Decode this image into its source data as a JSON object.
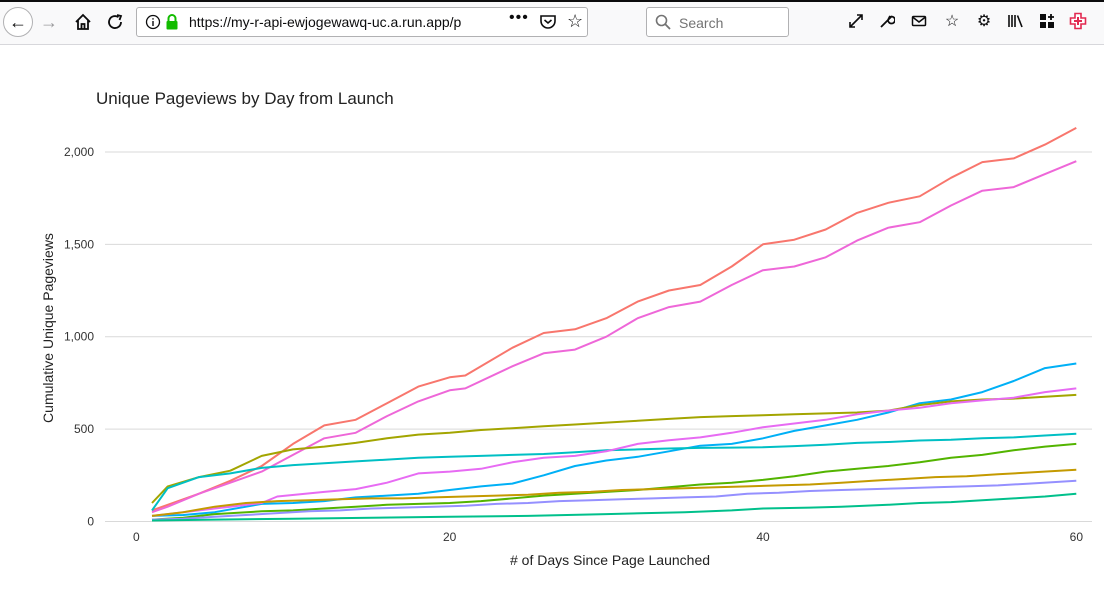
{
  "browser": {
    "url": "https://my-r-api-ewjogewawq-uc.a.run.app/p",
    "url_more": "•••",
    "search_placeholder": "Search"
  },
  "chart_data": {
    "type": "line",
    "title": "Unique Pageviews by Day from Launch",
    "xlabel": "# of Days Since Page Launched",
    "ylabel": "Cumulative Unique Pageviews",
    "xlim": [
      -2,
      61
    ],
    "ylim": [
      -30,
      2200
    ],
    "x_ticks": [
      0,
      20,
      40,
      60
    ],
    "x_tick_labels": [
      "0",
      "20",
      "40",
      "60"
    ],
    "y_ticks": [
      0,
      500,
      1000,
      1500,
      2000
    ],
    "y_tick_labels": [
      "0",
      "500",
      "1,000",
      "1,500",
      "2,000"
    ],
    "grid": "horizontal",
    "legend": "none",
    "series": [
      {
        "color": "#F8766D",
        "points": [
          [
            1,
            60
          ],
          [
            2,
            90
          ],
          [
            4,
            150
          ],
          [
            6,
            220
          ],
          [
            8,
            300
          ],
          [
            10,
            420
          ],
          [
            12,
            520
          ],
          [
            14,
            550
          ],
          [
            16,
            640
          ],
          [
            18,
            730
          ],
          [
            20,
            780
          ],
          [
            21,
            790
          ],
          [
            24,
            940
          ],
          [
            26,
            1020
          ],
          [
            28,
            1040
          ],
          [
            30,
            1100
          ],
          [
            32,
            1190
          ],
          [
            34,
            1250
          ],
          [
            36,
            1280
          ],
          [
            38,
            1380
          ],
          [
            40,
            1500
          ],
          [
            42,
            1525
          ],
          [
            44,
            1580
          ],
          [
            46,
            1670
          ],
          [
            48,
            1725
          ],
          [
            50,
            1760
          ],
          [
            52,
            1860
          ],
          [
            54,
            1945
          ],
          [
            56,
            1965
          ],
          [
            58,
            2040
          ],
          [
            60,
            2130
          ]
        ]
      },
      {
        "color": "#EE67D8",
        "points": [
          [
            1,
            50
          ],
          [
            2,
            80
          ],
          [
            4,
            150
          ],
          [
            6,
            210
          ],
          [
            8,
            270
          ],
          [
            10,
            360
          ],
          [
            12,
            450
          ],
          [
            14,
            480
          ],
          [
            16,
            570
          ],
          [
            18,
            650
          ],
          [
            20,
            710
          ],
          [
            21,
            720
          ],
          [
            24,
            840
          ],
          [
            26,
            910
          ],
          [
            28,
            930
          ],
          [
            30,
            1000
          ],
          [
            32,
            1100
          ],
          [
            34,
            1160
          ],
          [
            36,
            1190
          ],
          [
            38,
            1280
          ],
          [
            40,
            1360
          ],
          [
            42,
            1380
          ],
          [
            44,
            1430
          ],
          [
            46,
            1520
          ],
          [
            48,
            1590
          ],
          [
            50,
            1620
          ],
          [
            52,
            1710
          ],
          [
            54,
            1790
          ],
          [
            56,
            1810
          ],
          [
            58,
            1880
          ],
          [
            60,
            1950
          ]
        ]
      },
      {
        "color": "#00B0F6",
        "points": [
          [
            1,
            30
          ],
          [
            3,
            35
          ],
          [
            5,
            50
          ],
          [
            8,
            95
          ],
          [
            10,
            100
          ],
          [
            12,
            110
          ],
          [
            14,
            130
          ],
          [
            16,
            140
          ],
          [
            18,
            150
          ],
          [
            20,
            170
          ],
          [
            22,
            190
          ],
          [
            24,
            205
          ],
          [
            26,
            250
          ],
          [
            28,
            300
          ],
          [
            30,
            330
          ],
          [
            32,
            350
          ],
          [
            34,
            380
          ],
          [
            36,
            410
          ],
          [
            38,
            420
          ],
          [
            40,
            450
          ],
          [
            42,
            490
          ],
          [
            44,
            520
          ],
          [
            46,
            550
          ],
          [
            48,
            590
          ],
          [
            50,
            640
          ],
          [
            52,
            660
          ],
          [
            54,
            700
          ],
          [
            56,
            760
          ],
          [
            58,
            830
          ],
          [
            60,
            855
          ]
        ]
      },
      {
        "color": "#A3A500",
        "points": [
          [
            1,
            100
          ],
          [
            2,
            190
          ],
          [
            4,
            240
          ],
          [
            6,
            275
          ],
          [
            8,
            355
          ],
          [
            10,
            390
          ],
          [
            12,
            405
          ],
          [
            14,
            425
          ],
          [
            16,
            450
          ],
          [
            18,
            470
          ],
          [
            20,
            480
          ],
          [
            22,
            495
          ],
          [
            24,
            505
          ],
          [
            26,
            515
          ],
          [
            28,
            525
          ],
          [
            30,
            535
          ],
          [
            32,
            545
          ],
          [
            34,
            555
          ],
          [
            36,
            565
          ],
          [
            38,
            570
          ],
          [
            40,
            575
          ],
          [
            42,
            580
          ],
          [
            44,
            585
          ],
          [
            46,
            590
          ],
          [
            48,
            600
          ],
          [
            50,
            630
          ],
          [
            52,
            650
          ],
          [
            54,
            660
          ],
          [
            56,
            665
          ],
          [
            58,
            675
          ],
          [
            60,
            685
          ]
        ]
      },
      {
        "color": "#00BFC4",
        "points": [
          [
            1,
            60
          ],
          [
            2,
            180
          ],
          [
            4,
            240
          ],
          [
            6,
            260
          ],
          [
            8,
            290
          ],
          [
            10,
            305
          ],
          [
            12,
            315
          ],
          [
            14,
            325
          ],
          [
            16,
            335
          ],
          [
            18,
            345
          ],
          [
            20,
            350
          ],
          [
            22,
            355
          ],
          [
            24,
            360
          ],
          [
            26,
            365
          ],
          [
            28,
            375
          ],
          [
            30,
            385
          ],
          [
            32,
            390
          ],
          [
            34,
            395
          ],
          [
            36,
            398
          ],
          [
            38,
            400
          ],
          [
            40,
            402
          ],
          [
            42,
            408
          ],
          [
            44,
            415
          ],
          [
            46,
            425
          ],
          [
            48,
            430
          ],
          [
            50,
            438
          ],
          [
            52,
            442
          ],
          [
            54,
            450
          ],
          [
            56,
            455
          ],
          [
            58,
            465
          ],
          [
            60,
            475
          ]
        ]
      },
      {
        "color": "#E76BF3",
        "points": [
          [
            1,
            30
          ],
          [
            2,
            40
          ],
          [
            4,
            60
          ],
          [
            6,
            80
          ],
          [
            8,
            100
          ],
          [
            9,
            135
          ],
          [
            12,
            160
          ],
          [
            14,
            175
          ],
          [
            16,
            210
          ],
          [
            18,
            260
          ],
          [
            20,
            270
          ],
          [
            22,
            285
          ],
          [
            24,
            320
          ],
          [
            26,
            345
          ],
          [
            28,
            355
          ],
          [
            30,
            380
          ],
          [
            32,
            420
          ],
          [
            34,
            440
          ],
          [
            36,
            455
          ],
          [
            38,
            480
          ],
          [
            40,
            510
          ],
          [
            42,
            530
          ],
          [
            44,
            550
          ],
          [
            46,
            580
          ],
          [
            48,
            600
          ],
          [
            50,
            615
          ],
          [
            52,
            640
          ],
          [
            54,
            655
          ],
          [
            56,
            670
          ],
          [
            58,
            700
          ],
          [
            60,
            720
          ]
        ]
      },
      {
        "color": "#53B400",
        "points": [
          [
            1,
            10
          ],
          [
            3,
            20
          ],
          [
            5,
            40
          ],
          [
            8,
            55
          ],
          [
            10,
            60
          ],
          [
            12,
            70
          ],
          [
            14,
            80
          ],
          [
            16,
            90
          ],
          [
            18,
            95
          ],
          [
            20,
            100
          ],
          [
            22,
            110
          ],
          [
            24,
            125
          ],
          [
            26,
            140
          ],
          [
            28,
            150
          ],
          [
            30,
            160
          ],
          [
            32,
            170
          ],
          [
            34,
            185
          ],
          [
            36,
            200
          ],
          [
            38,
            210
          ],
          [
            40,
            225
          ],
          [
            42,
            245
          ],
          [
            44,
            270
          ],
          [
            46,
            285
          ],
          [
            48,
            300
          ],
          [
            50,
            320
          ],
          [
            52,
            345
          ],
          [
            54,
            360
          ],
          [
            56,
            385
          ],
          [
            58,
            405
          ],
          [
            60,
            420
          ]
        ]
      },
      {
        "color": "#C49A00",
        "points": [
          [
            1,
            30
          ],
          [
            3,
            50
          ],
          [
            5,
            80
          ],
          [
            7,
            100
          ],
          [
            9,
            110
          ],
          [
            11,
            115
          ],
          [
            13,
            120
          ],
          [
            15,
            125
          ],
          [
            17,
            125
          ],
          [
            19,
            130
          ],
          [
            21,
            135
          ],
          [
            23,
            140
          ],
          [
            25,
            145
          ],
          [
            27,
            155
          ],
          [
            29,
            160
          ],
          [
            31,
            170
          ],
          [
            33,
            175
          ],
          [
            35,
            180
          ],
          [
            37,
            185
          ],
          [
            39,
            190
          ],
          [
            41,
            195
          ],
          [
            43,
            200
          ],
          [
            45,
            210
          ],
          [
            47,
            220
          ],
          [
            49,
            230
          ],
          [
            51,
            240
          ],
          [
            53,
            245
          ],
          [
            55,
            255
          ],
          [
            57,
            265
          ],
          [
            60,
            280
          ]
        ]
      },
      {
        "color": "#9590FF",
        "points": [
          [
            1,
            10
          ],
          [
            3,
            15
          ],
          [
            5,
            25
          ],
          [
            7,
            35
          ],
          [
            9,
            45
          ],
          [
            11,
            55
          ],
          [
            13,
            60
          ],
          [
            15,
            70
          ],
          [
            17,
            75
          ],
          [
            19,
            80
          ],
          [
            21,
            85
          ],
          [
            23,
            95
          ],
          [
            25,
            100
          ],
          [
            27,
            110
          ],
          [
            29,
            115
          ],
          [
            31,
            120
          ],
          [
            33,
            125
          ],
          [
            35,
            130
          ],
          [
            37,
            135
          ],
          [
            39,
            150
          ],
          [
            41,
            155
          ],
          [
            43,
            165
          ],
          [
            45,
            170
          ],
          [
            47,
            175
          ],
          [
            49,
            180
          ],
          [
            51,
            185
          ],
          [
            53,
            190
          ],
          [
            55,
            195
          ],
          [
            57,
            205
          ],
          [
            60,
            220
          ]
        ]
      },
      {
        "color": "#00C08B",
        "points": [
          [
            1,
            5
          ],
          [
            5,
            10
          ],
          [
            10,
            15
          ],
          [
            15,
            20
          ],
          [
            20,
            25
          ],
          [
            25,
            30
          ],
          [
            30,
            40
          ],
          [
            35,
            50
          ],
          [
            38,
            60
          ],
          [
            40,
            70
          ],
          [
            43,
            75
          ],
          [
            45,
            80
          ],
          [
            48,
            90
          ],
          [
            50,
            100
          ],
          [
            52,
            105
          ],
          [
            54,
            115
          ],
          [
            56,
            125
          ],
          [
            58,
            135
          ],
          [
            60,
            150
          ]
        ]
      }
    ]
  }
}
